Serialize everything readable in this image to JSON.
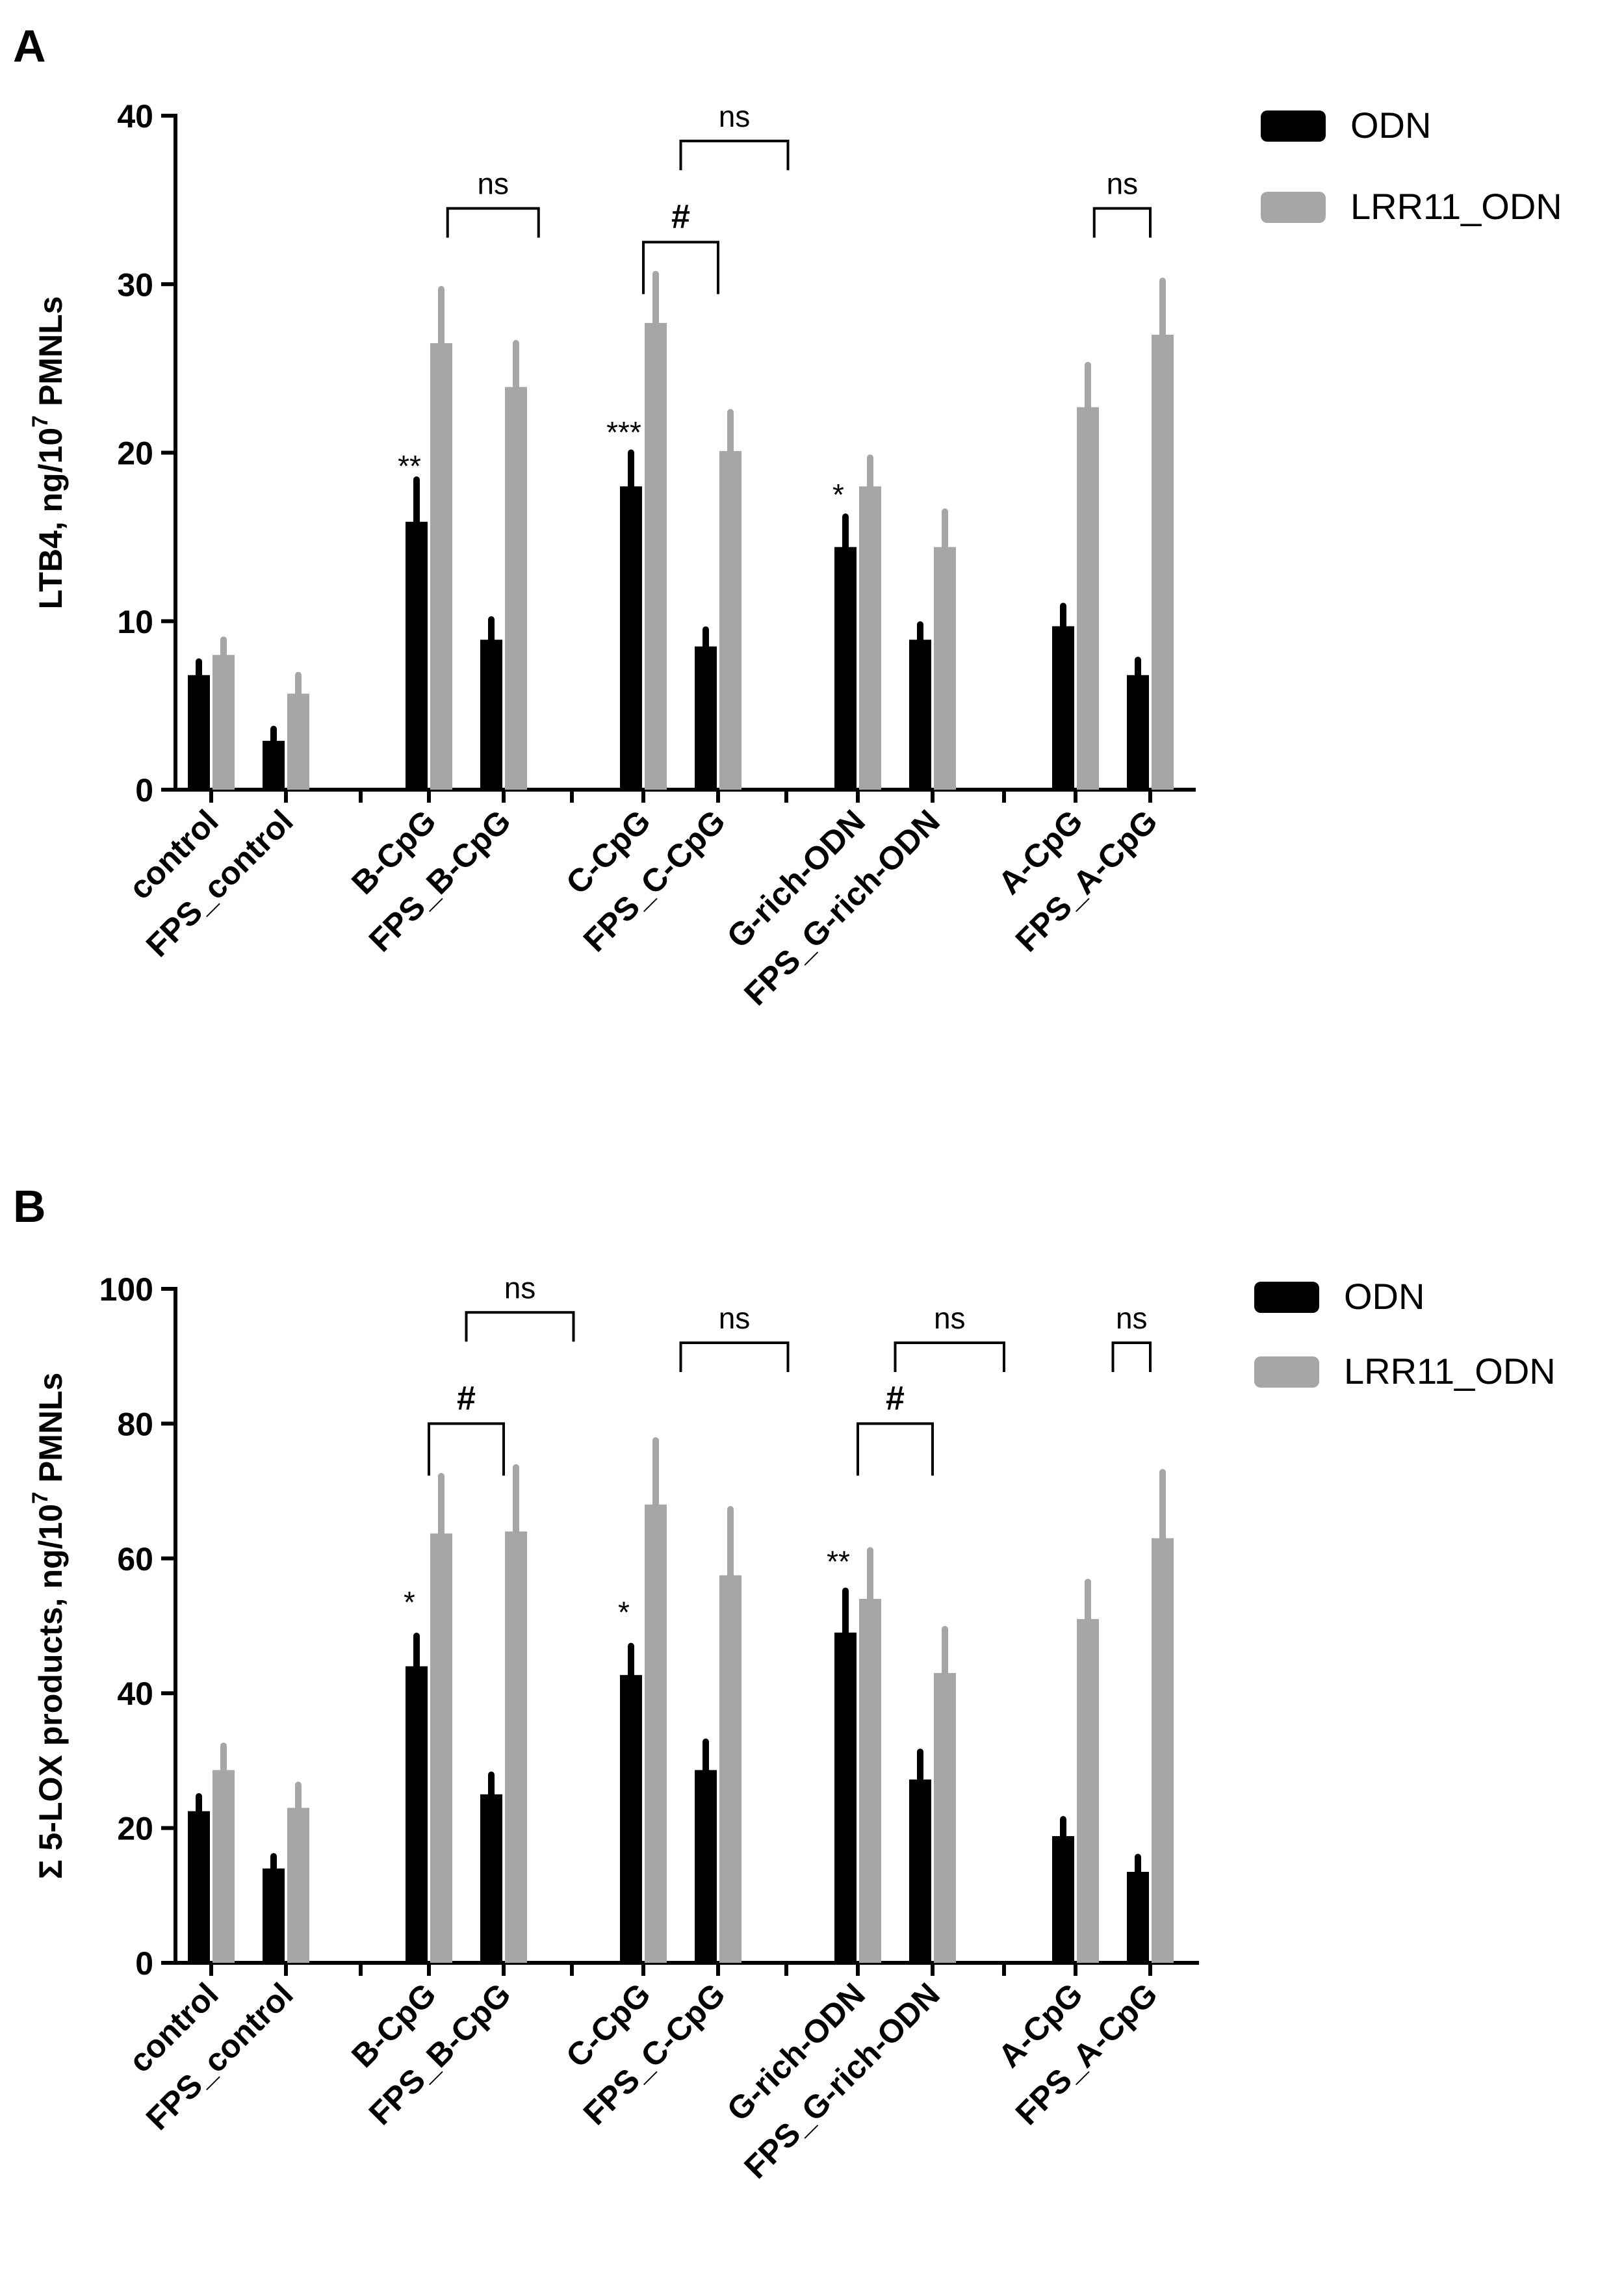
{
  "chart_data": [
    {
      "panel": "A",
      "type": "bar",
      "ylabel_main": "LTB4, ng/10",
      "ylabel_sup": "7",
      "ylabel_tail": " PMNLs",
      "ylim": [
        0,
        40
      ],
      "yticks": [
        0,
        10,
        20,
        30,
        40
      ],
      "categories": [
        "control",
        "FPS_control",
        "B-CpG",
        "FPS_B-CpG",
        "C-CpG",
        "FPS_C-CpG",
        "G-rich-ODN",
        "FPS_G-rich-ODN",
        "A-CpG",
        "FPS_A-CpG"
      ],
      "series": [
        {
          "name": "ODN",
          "color": "#000000",
          "values": [
            6.8,
            2.9,
            15.9,
            8.9,
            18.0,
            8.5,
            14.4,
            8.9,
            9.7,
            6.8
          ],
          "errors": [
            0.8,
            0.7,
            2.5,
            1.2,
            2.0,
            1.0,
            1.8,
            0.9,
            1.2,
            0.9
          ]
        },
        {
          "name": "LRR11_ODN",
          "color": "#a6a6a6",
          "values": [
            8.0,
            5.7,
            26.5,
            23.9,
            27.7,
            20.1,
            18.0,
            14.4,
            22.7,
            27.0
          ],
          "errors": [
            0.9,
            1.1,
            3.2,
            2.6,
            2.9,
            2.3,
            1.7,
            2.1,
            2.5,
            3.2
          ]
        }
      ],
      "annotations": [
        {
          "text": "**",
          "category": 2,
          "y": 18.6
        },
        {
          "text": "***",
          "category": 4,
          "y": 20.6
        },
        {
          "text": "*",
          "category": 6,
          "y": 16.9
        }
      ],
      "brackets": [
        {
          "text": "ns",
          "x1": 2.25,
          "x2": 3.25,
          "y": 34.5,
          "kind": "ns"
        },
        {
          "text": "#",
          "x1": 4,
          "x2": 5,
          "y": 32.5,
          "kind": "hash"
        },
        {
          "text": "ns",
          "x1": 4.5,
          "x2": 5.5,
          "y": 38.5,
          "kind": "ns"
        },
        {
          "text": "ns",
          "x1": 8.25,
          "x2": 9.25,
          "y": 34.5,
          "kind": "ns"
        }
      ]
    },
    {
      "panel": "B",
      "type": "bar",
      "ylabel_main": "Σ 5-LOX products, ng/10",
      "ylabel_sup": "7",
      "ylabel_tail": " PMNLs",
      "ylim": [
        0,
        100
      ],
      "yticks": [
        0,
        20,
        40,
        60,
        80,
        100
      ],
      "categories": [
        "control",
        "FPS_control",
        "B-CpG",
        "FPS_B-CpG",
        "C-CpG",
        "FPS_C-CpG",
        "G-rich-ODN",
        "FPS_G-rich-ODN",
        "A-CpG",
        "FPS_A-CpG"
      ],
      "series": [
        {
          "name": "ODN",
          "color": "#000000",
          "values": [
            22.5,
            14.0,
            44.0,
            25.0,
            42.7,
            28.6,
            49.0,
            27.2,
            18.8,
            13.5
          ],
          "errors": [
            2.2,
            1.8,
            4.5,
            2.9,
            4.3,
            4.2,
            6.2,
            4.1,
            2.5,
            2.2
          ]
        },
        {
          "name": "LRR11_ODN",
          "color": "#a6a6a6",
          "values": [
            28.6,
            23.0,
            63.7,
            64.0,
            68.0,
            57.5,
            54.0,
            43.0,
            51.0,
            63.0
          ],
          "errors": [
            3.6,
            3.4,
            8.5,
            9.5,
            9.5,
            9.8,
            7.2,
            6.5,
            5.5,
            9.8
          ]
        }
      ],
      "annotations": [
        {
          "text": "*",
          "category": 2,
          "y": 52.0
        },
        {
          "text": "*",
          "category": 4,
          "y": 50.5
        },
        {
          "text": "**",
          "category": 6,
          "y": 58.0
        }
      ],
      "brackets": [
        {
          "text": "#",
          "x1": 2,
          "x2": 3,
          "y": 80.0,
          "kind": "hash"
        },
        {
          "text": "ns",
          "x1": 2.5,
          "x2": 3.5,
          "y": 96.5,
          "kind": "ns"
        },
        {
          "text": "ns",
          "x1": 4.5,
          "x2": 5.5,
          "y": 92.0,
          "kind": "ns"
        },
        {
          "text": "#",
          "x1": 6,
          "x2": 7,
          "y": 80.0,
          "kind": "hash"
        },
        {
          "text": "ns",
          "x1": 6.5,
          "x2": 7.5,
          "y": 92.0,
          "kind": "ns"
        },
        {
          "text": "ns",
          "x1": 8.5,
          "x2": 9.5,
          "y": 92.0,
          "kind": "ns"
        }
      ]
    }
  ]
}
